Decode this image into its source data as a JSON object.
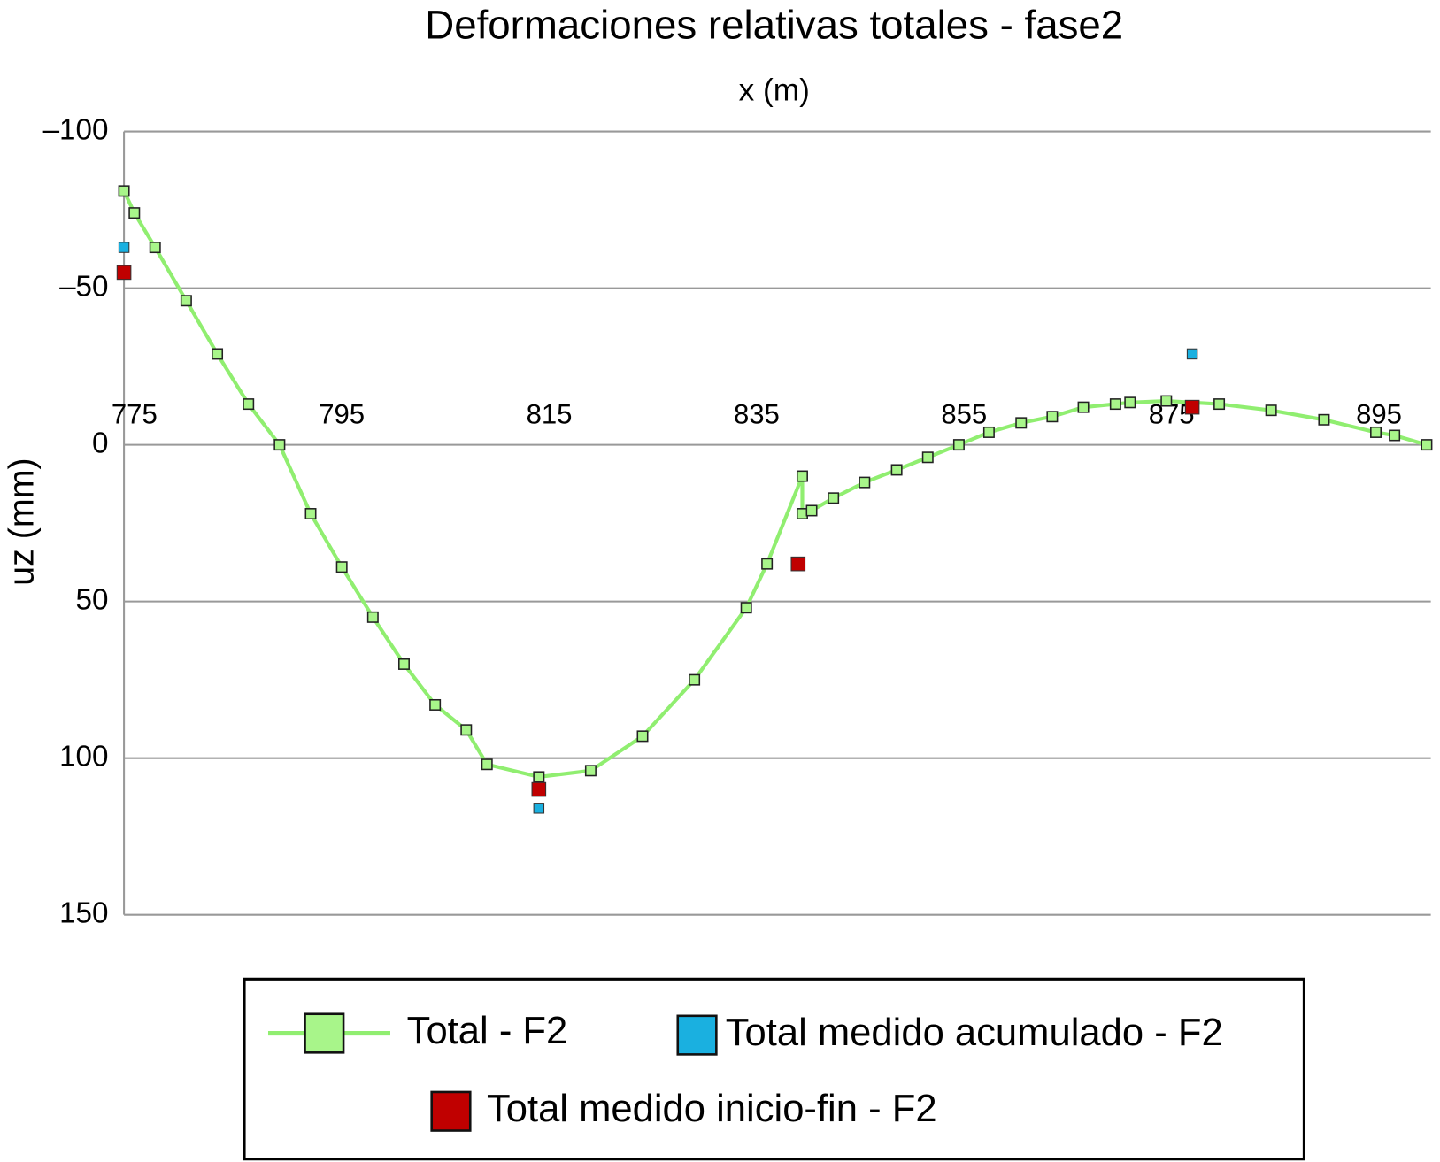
{
  "chart_data": {
    "type": "line",
    "title": "Deformaciones relativas totales - fase2",
    "x_label": "x (m)",
    "y_label": "uz (mm)",
    "xlim": [
      774,
      900
    ],
    "xticks": [
      775,
      795,
      815,
      835,
      855,
      875,
      895
    ],
    "ylim": [
      -100,
      150
    ],
    "y_inverted": true,
    "yticks": [
      {
        "value": -100,
        "label": "–100"
      },
      {
        "value": -50,
        "label": "–50"
      },
      0,
      50,
      100,
      150
    ],
    "grid": true,
    "series": [
      {
        "name": "Total - F2",
        "color": "#90ee70",
        "line": true,
        "x": [
          774,
          775,
          777,
          780,
          783,
          786,
          789,
          792,
          795,
          798,
          801,
          804,
          807,
          809,
          814,
          819,
          824,
          829,
          834,
          836,
          839.4,
          839.4,
          840.3,
          842.4,
          845.4,
          848.5,
          851.5,
          854.5,
          857.4,
          860.5,
          863.5,
          866.5,
          869.6,
          871,
          874.5,
          879.6,
          884.6,
          889.7,
          894.7,
          896.5,
          899.6
        ],
        "values": [
          -81,
          -74,
          -63,
          -46,
          -29,
          -13,
          0,
          22,
          39,
          55,
          70,
          83,
          91,
          102,
          106,
          104,
          93,
          75,
          52,
          38,
          10,
          22,
          21,
          17,
          12,
          8,
          4,
          0,
          -4,
          -7,
          -9,
          -12,
          -13,
          -13.5,
          -14,
          -13,
          -11,
          -8,
          -4,
          -3,
          0
        ]
      },
      {
        "name": "Total medido acumulado - F2",
        "color": "#1ab0e0",
        "line": false,
        "x": [
          774,
          814,
          877
        ],
        "values": [
          -63,
          116,
          -29
        ]
      },
      {
        "name": "Total medido inicio-fin - F2",
        "color": "#c00000",
        "line": false,
        "x": [
          774,
          814,
          839,
          877
        ],
        "values": [
          -55,
          110,
          38,
          -12
        ]
      }
    ]
  }
}
